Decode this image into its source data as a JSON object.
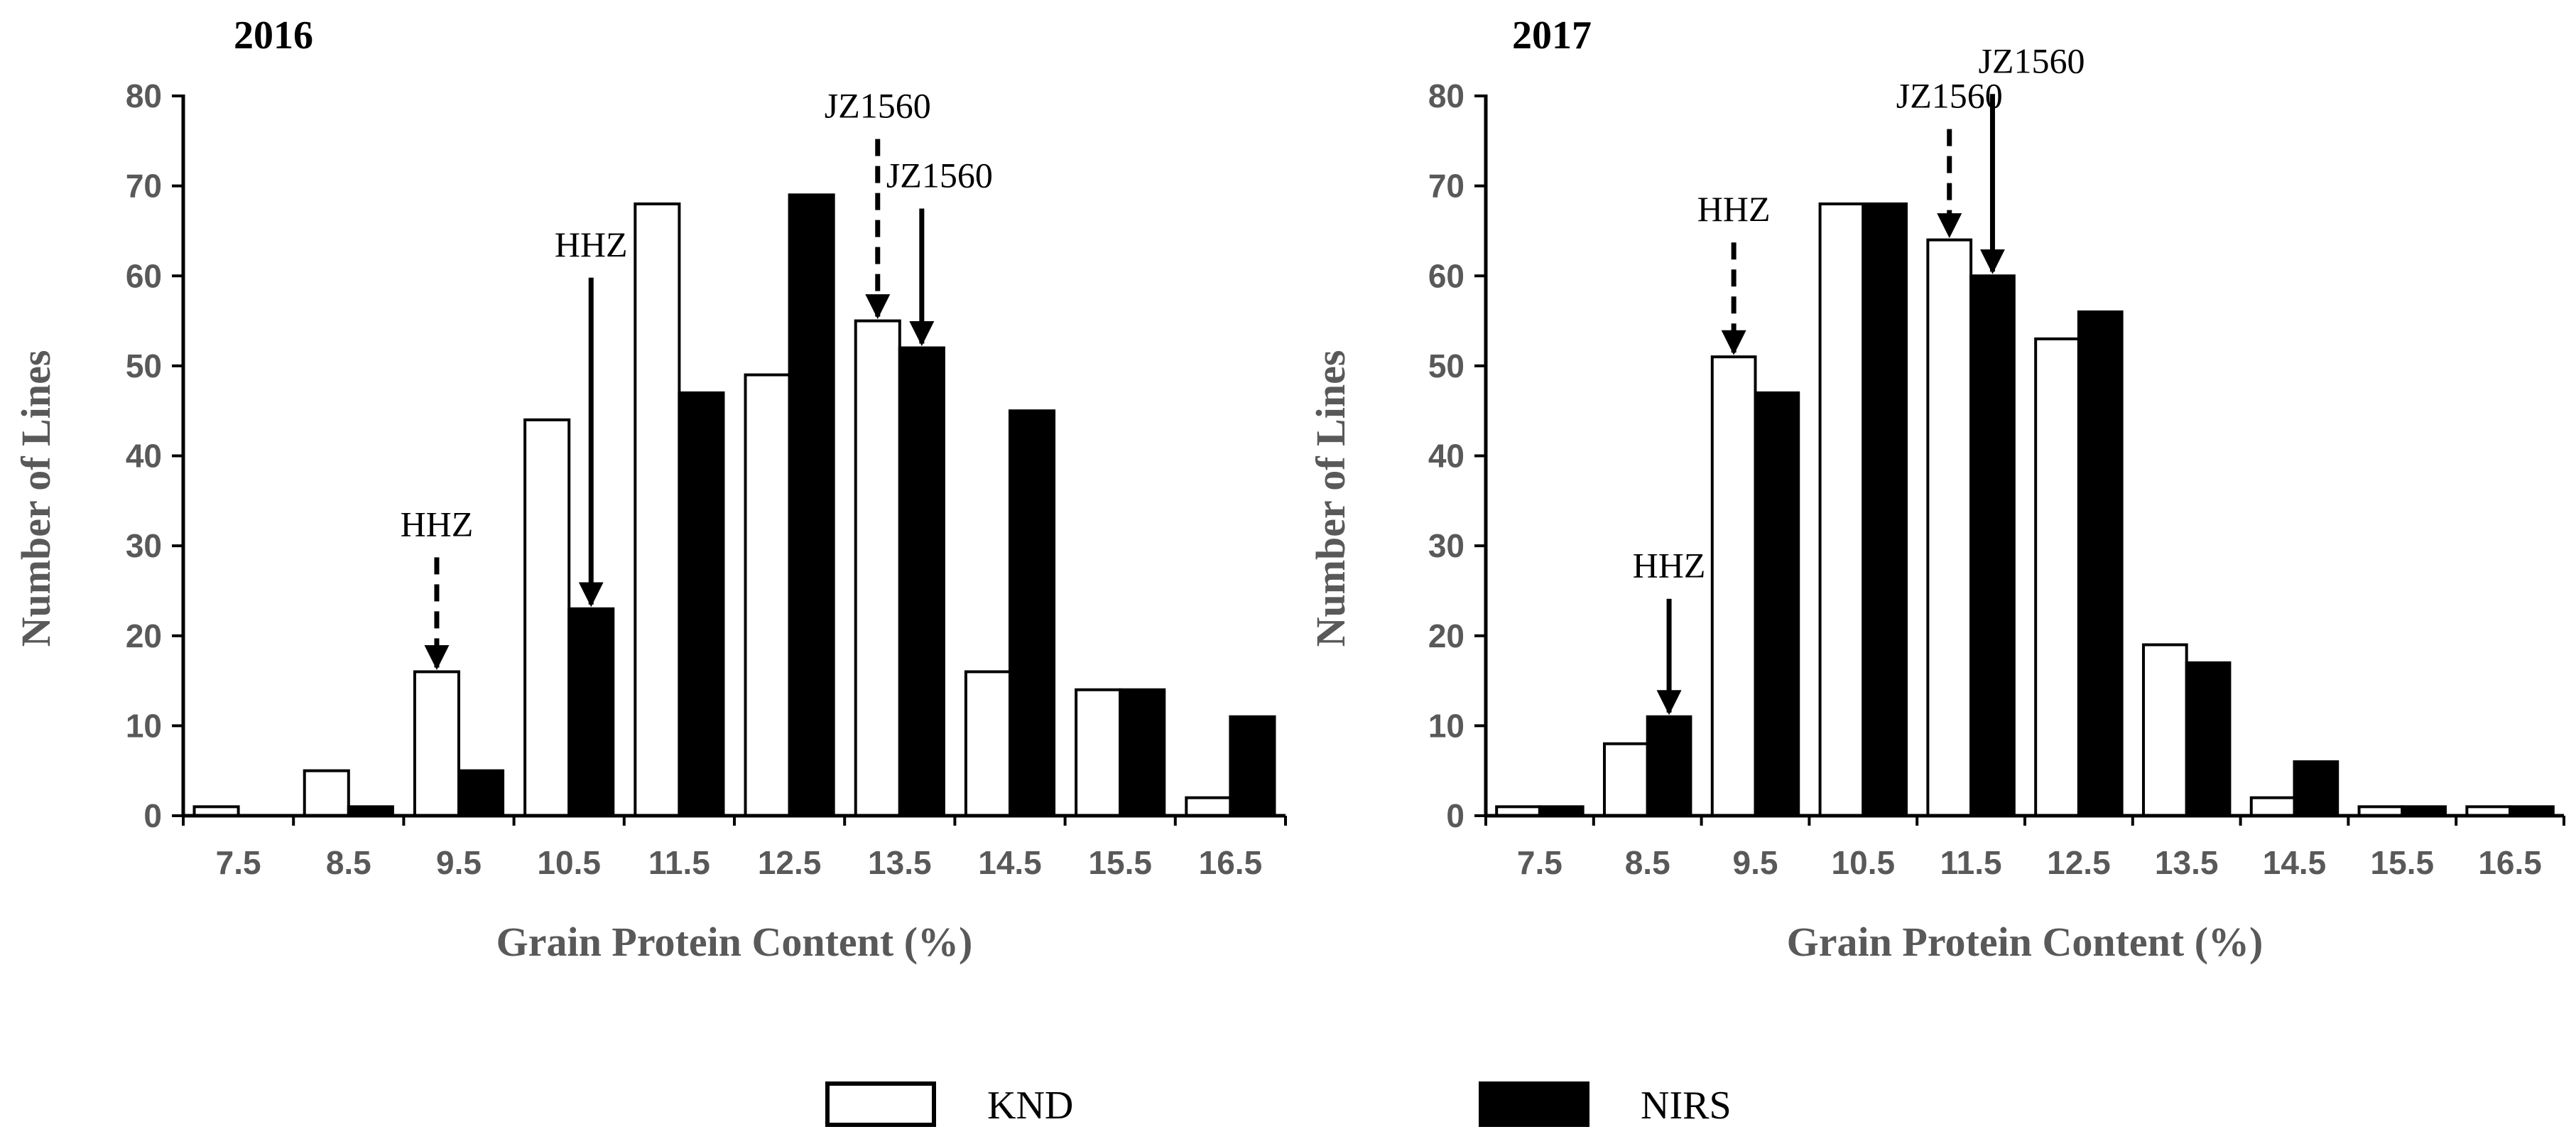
{
  "colors": {
    "knd_fill": "#ffffff",
    "nirs_fill": "#000000",
    "bar_stroke": "#000000",
    "axis": "#000000",
    "label_gray": "#595959"
  },
  "legend": {
    "position": "bottom-center",
    "items": [
      {
        "label": "KND",
        "color": "#ffffff"
      },
      {
        "label": "NIRS",
        "color": "#000000"
      }
    ]
  },
  "chart_data": [
    {
      "type": "bar",
      "title": "2016",
      "xlabel": "Grain Protein Content (%)",
      "ylabel": "Number of Lines",
      "ylim": [
        0,
        80
      ],
      "yticks": [
        0,
        10,
        20,
        30,
        40,
        50,
        60,
        70,
        80
      ],
      "categories": [
        "7.5",
        "8.5",
        "9.5",
        "10.5",
        "11.5",
        "12.5",
        "13.5",
        "14.5",
        "15.5",
        "16.5"
      ],
      "series": [
        {
          "name": "KND",
          "values": [
            1,
            5,
            16,
            44,
            68,
            49,
            55,
            16,
            14,
            2
          ]
        },
        {
          "name": "NIRS",
          "values": [
            0,
            1,
            5,
            23,
            47,
            69,
            52,
            45,
            14,
            11
          ]
        }
      ],
      "annotations": [
        {
          "text": "HHZ",
          "category_index": 2,
          "series": "KND",
          "arrow": "dashed"
        },
        {
          "text": "HHZ",
          "category_index": 3,
          "series": "NIRS",
          "arrow": "solid"
        },
        {
          "text": "JZ1560",
          "category_index": 6,
          "series": "KND",
          "arrow": "dashed"
        },
        {
          "text": "JZ1560",
          "category_index": 6,
          "series": "NIRS",
          "arrow": "solid"
        }
      ]
    },
    {
      "type": "bar",
      "title": "2017",
      "xlabel": "Grain Protein Content (%)",
      "ylabel": "Number of Lines",
      "ylim": [
        0,
        80
      ],
      "yticks": [
        0,
        10,
        20,
        30,
        40,
        50,
        60,
        70,
        80
      ],
      "categories": [
        "7.5",
        "8.5",
        "9.5",
        "10.5",
        "11.5",
        "12.5",
        "13.5",
        "14.5",
        "15.5",
        "16.5"
      ],
      "series": [
        {
          "name": "KND",
          "values": [
            1,
            8,
            51,
            68,
            64,
            53,
            19,
            2,
            1,
            1
          ]
        },
        {
          "name": "NIRS",
          "values": [
            1,
            11,
            47,
            68,
            60,
            56,
            17,
            6,
            1,
            1
          ]
        }
      ],
      "annotations": [
        {
          "text": "HHZ",
          "category_index": 2,
          "series": "KND",
          "arrow": "dashed"
        },
        {
          "text": "HHZ",
          "category_index": 1,
          "series": "NIRS",
          "arrow": "solid"
        },
        {
          "text": "JZ1560",
          "category_index": 4,
          "series": "KND",
          "arrow": "dashed"
        },
        {
          "text": "JZ1560",
          "category_index": 4,
          "series": "NIRS",
          "arrow": "solid"
        }
      ]
    }
  ]
}
